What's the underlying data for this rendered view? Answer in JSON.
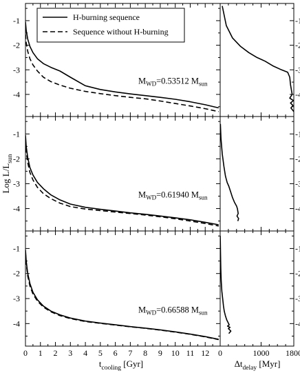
{
  "chart_data": {
    "type": "line",
    "ylabel": "Log L/L",
    "ylabel_sub": "sun",
    "left_xlabel": {
      "main": "t",
      "sub": "cooling",
      "unit": "[Gyr]"
    },
    "right_xlabel": {
      "main": "Δt",
      "sub": "delay",
      "unit": "[Myr]"
    },
    "left_xlim": [
      0,
      13
    ],
    "left_xticks": [
      "0",
      "1",
      "2",
      "3",
      "4",
      "5",
      "6",
      "7",
      "8",
      "9",
      "10",
      "11",
      "12"
    ],
    "right_xlim": [
      0,
      1800
    ],
    "right_xticks": [
      "0",
      "1000",
      "1800"
    ],
    "ylim": [
      -4.9,
      -0.3
    ],
    "yticks": [
      "-1",
      "-2",
      "-3",
      "-4"
    ],
    "legend": {
      "placement": "top-left",
      "entries": [
        {
          "label": "H-burning sequence",
          "style": "solid"
        },
        {
          "label": "Sequence without H-burning",
          "style": "dashed"
        }
      ]
    },
    "panels": [
      {
        "mass_label": {
          "prefix": "M",
          "sub1": "WD",
          "value": "=0.53512 M",
          "sub2": "sun"
        },
        "series": [
          {
            "name": "H-burning sequence",
            "style": "solid",
            "x": [
              0,
              0.05,
              0.15,
              0.3,
              0.5,
              0.8,
              1.2,
              1.7,
              2.3,
              3,
              4,
              5,
              6,
              7,
              8,
              9,
              10,
              11,
              12,
              12.9
            ],
            "y": [
              -1.05,
              -1.4,
              -1.75,
              -2.05,
              -2.3,
              -2.55,
              -2.75,
              -2.9,
              -3.05,
              -3.3,
              -3.65,
              -3.8,
              -3.9,
              -3.98,
              -4.05,
              -4.12,
              -4.2,
              -4.3,
              -4.42,
              -4.55
            ]
          },
          {
            "name": "Sequence without H-burning",
            "style": "dashed",
            "x": [
              0,
              0.05,
              0.15,
              0.3,
              0.5,
              0.8,
              1.2,
              1.7,
              2.3,
              3,
              4,
              5,
              6,
              7,
              8,
              9,
              10,
              11,
              12,
              12.9
            ],
            "y": [
              -1.55,
              -1.9,
              -2.25,
              -2.55,
              -2.8,
              -3.05,
              -3.3,
              -3.48,
              -3.62,
              -3.75,
              -3.88,
              -3.97,
              -4.05,
              -4.12,
              -4.18,
              -4.27,
              -4.37,
              -4.47,
              -4.58,
              -4.7
            ]
          }
        ],
        "delay": {
          "x": [
            50,
            150,
            300,
            500,
            700,
            900,
            1100,
            1300,
            1500,
            1650,
            1700,
            1720,
            1760,
            1700,
            1790,
            1720,
            1780,
            1730,
            1800
          ],
          "y": [
            -0.4,
            -1.2,
            -1.7,
            -2.05,
            -2.3,
            -2.5,
            -2.65,
            -2.85,
            -3.0,
            -3.1,
            -3.3,
            -3.6,
            -4.0,
            -4.15,
            -4.25,
            -4.35,
            -4.45,
            -4.55,
            -4.7
          ]
        }
      },
      {
        "mass_label": {
          "prefix": "M",
          "sub1": "WD",
          "value": "=0.61940 M",
          "sub2": "sun"
        },
        "series": [
          {
            "name": "H-burning sequence",
            "style": "solid",
            "x": [
              0,
              0.05,
              0.15,
              0.3,
              0.5,
              0.8,
              1.2,
              1.7,
              2.3,
              3,
              4,
              5,
              6,
              7,
              8,
              9,
              10,
              11,
              12,
              12.9
            ],
            "y": [
              -1.05,
              -1.5,
              -1.95,
              -2.35,
              -2.65,
              -2.95,
              -3.2,
              -3.45,
              -3.65,
              -3.82,
              -3.95,
              -4.03,
              -4.1,
              -4.17,
              -4.23,
              -4.3,
              -4.37,
              -4.45,
              -4.55,
              -4.65
            ]
          },
          {
            "name": "Sequence without H-burning",
            "style": "dashed",
            "x": [
              0,
              0.05,
              0.15,
              0.3,
              0.5,
              0.8,
              1.2,
              1.7,
              2.3,
              3,
              4,
              5,
              6,
              7,
              8,
              9,
              10,
              11,
              12,
              12.9
            ],
            "y": [
              -1.25,
              -1.7,
              -2.15,
              -2.55,
              -2.85,
              -3.15,
              -3.4,
              -3.6,
              -3.78,
              -3.92,
              -4.02,
              -4.08,
              -4.14,
              -4.2,
              -4.26,
              -4.33,
              -4.41,
              -4.5,
              -4.6,
              -4.7
            ]
          }
        ],
        "delay": {
          "x": [
            5,
            20,
            50,
            90,
            130,
            170,
            210,
            250,
            300,
            350,
            400,
            420,
            440,
            410,
            450,
            430
          ],
          "y": [
            -0.6,
            -1.2,
            -1.8,
            -2.3,
            -2.7,
            -2.95,
            -3.1,
            -3.3,
            -3.55,
            -3.75,
            -3.9,
            -4.0,
            -4.2,
            -4.3,
            -4.4,
            -4.5
          ]
        }
      },
      {
        "mass_label": {
          "prefix": "M",
          "sub1": "WD",
          "value": "=0.66588 M",
          "sub2": "sun"
        },
        "series": [
          {
            "name": "H-burning sequence",
            "style": "solid",
            "x": [
              0,
              0.05,
              0.15,
              0.3,
              0.5,
              0.8,
              1.2,
              1.7,
              2.3,
              3,
              4,
              5,
              6,
              7,
              8,
              9,
              10,
              11,
              12,
              12.9
            ],
            "y": [
              -1.05,
              -1.5,
              -2.0,
              -2.4,
              -2.75,
              -3.05,
              -3.3,
              -3.5,
              -3.65,
              -3.78,
              -3.9,
              -3.98,
              -4.05,
              -4.12,
              -4.18,
              -4.25,
              -4.33,
              -4.42,
              -4.52,
              -4.63
            ]
          },
          {
            "name": "Sequence without H-burning",
            "style": "dashed",
            "x": [
              0,
              0.05,
              0.15,
              0.3,
              0.5,
              0.8,
              1.2,
              1.7,
              2.3,
              3,
              4,
              5,
              6,
              7,
              8,
              9,
              10,
              11,
              12,
              12.9
            ],
            "y": [
              -1.15,
              -1.6,
              -2.1,
              -2.5,
              -2.82,
              -3.1,
              -3.34,
              -3.53,
              -3.68,
              -3.8,
              -3.92,
              -3.99,
              -4.06,
              -4.13,
              -4.19,
              -4.26,
              -4.34,
              -4.43,
              -4.53,
              -4.64
            ]
          }
        ],
        "delay": {
          "x": [
            2,
            8,
            15,
            25,
            40,
            60,
            80,
            100,
            130,
            160,
            190,
            220,
            180,
            240,
            200,
            260,
            210
          ],
          "y": [
            -0.5,
            -1.2,
            -1.8,
            -2.3,
            -2.7,
            -3.0,
            -3.3,
            -3.5,
            -3.7,
            -3.85,
            -3.95,
            -4.05,
            -4.1,
            -4.15,
            -4.2,
            -4.3,
            -4.4
          ]
        }
      }
    ]
  }
}
